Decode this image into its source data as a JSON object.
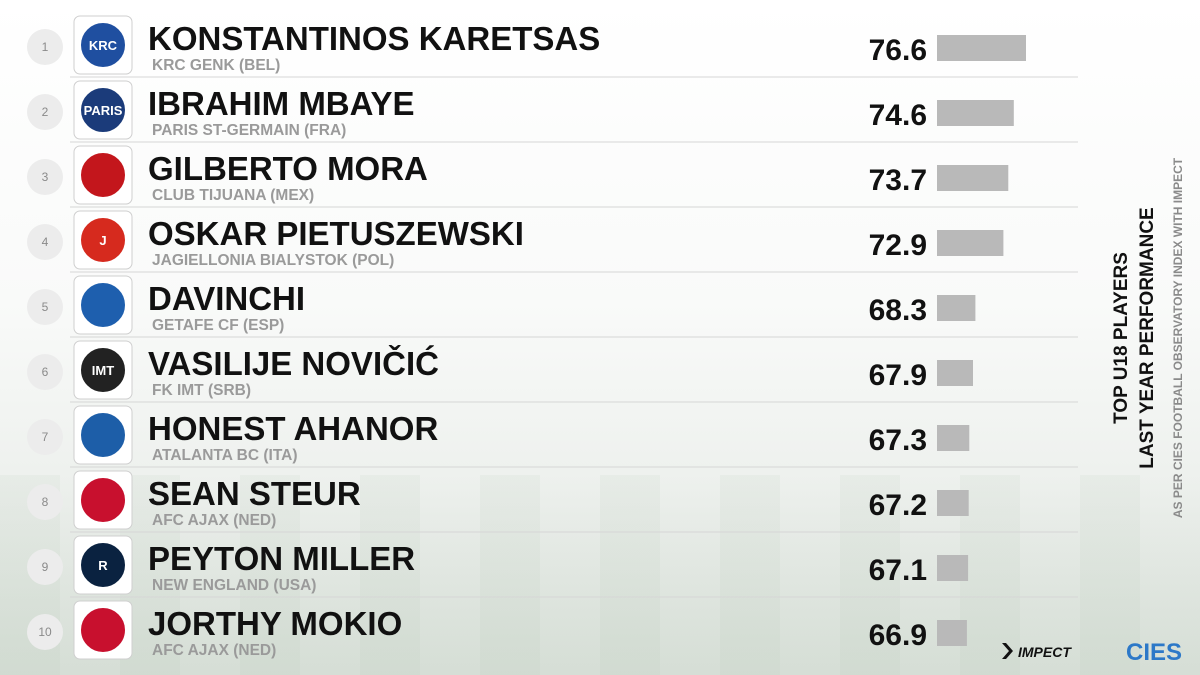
{
  "chart_data": {
    "type": "bar",
    "orientation": "horizontal",
    "title": "TOP U18 PLAYERS",
    "subtitle": "LAST YEAR PERFORMANCE",
    "note": "AS PER CIES FOOTBALL OBSERVATORY INDEX WITH IMPECT",
    "grid": false,
    "rows": [
      {
        "rank": "1",
        "name": "KONSTANTINOS KARETSAS",
        "club": "KRC GENK (BEL)",
        "value": 76.6,
        "value_label": "76.6",
        "logo_icon": "krc-genk-crest-icon",
        "logo_color": "#1f4fa0",
        "logo_text": "KRC"
      },
      {
        "rank": "2",
        "name": "IBRAHIM MBAYE",
        "club": "PARIS ST-GERMAIN (FRA)",
        "value": 74.6,
        "value_label": "74.6",
        "logo_icon": "paris-st-germain-crest-icon",
        "logo_color": "#1b3b7a",
        "logo_text": "PARIS"
      },
      {
        "rank": "3",
        "name": "GILBERTO MORA",
        "club": "CLUB TIJUANA (MEX)",
        "value": 73.7,
        "value_label": "73.7",
        "logo_icon": "club-tijuana-crest-icon",
        "logo_color": "#c3161c",
        "logo_text": ""
      },
      {
        "rank": "4",
        "name": "OSKAR PIETUSZEWSKI",
        "club": "JAGIELLONIA BIALYSTOK (POL)",
        "value": 72.9,
        "value_label": "72.9",
        "logo_icon": "jagiellonia-crest-icon",
        "logo_color": "#d62a1e",
        "logo_text": "J"
      },
      {
        "rank": "5",
        "name": "DAVINCHI",
        "club": "GETAFE CF (ESP)",
        "value": 68.3,
        "value_label": "68.3",
        "logo_icon": "getafe-crest-icon",
        "logo_color": "#1e5fae",
        "logo_text": ""
      },
      {
        "rank": "6",
        "name": "VASILIJE NOVIČIĆ",
        "club": "FK IMT (SRB)",
        "value": 67.9,
        "value_label": "67.9",
        "logo_icon": "fk-imt-crest-icon",
        "logo_color": "#222222",
        "logo_text": "IMT"
      },
      {
        "rank": "7",
        "name": "HONEST AHANOR",
        "club": "ATALANTA BC (ITA)",
        "value": 67.3,
        "value_label": "67.3",
        "logo_icon": "atalanta-crest-icon",
        "logo_color": "#1d5ea8",
        "logo_text": ""
      },
      {
        "rank": "8",
        "name": "SEAN STEUR",
        "club": "AFC AJAX (NED)",
        "value": 67.2,
        "value_label": "67.2",
        "logo_icon": "ajax-crest-icon",
        "logo_color": "#c8102e",
        "logo_text": ""
      },
      {
        "rank": "9",
        "name": "PEYTON MILLER",
        "club": "NEW ENGLAND (USA)",
        "value": 67.1,
        "value_label": "67.1",
        "logo_icon": "new-england-revolution-crest-icon",
        "logo_color": "#0a2240",
        "logo_text": "R"
      },
      {
        "rank": "10",
        "name": "JORTHY MOKIO",
        "club": "AFC AJAX (NED)",
        "value": 66.9,
        "value_label": "66.9",
        "logo_icon": "ajax-crest-icon",
        "logo_color": "#c8102e",
        "logo_text": ""
      }
    ],
    "value_scale_min": 62.0
  },
  "branding": {
    "impect_label": "IMPECT",
    "cies_label": "CIES",
    "cies_color": "#2c78c8"
  },
  "colors": {
    "bar": "#b9b9b9",
    "text": "#111111",
    "club_text": "#9a9a9a"
  }
}
